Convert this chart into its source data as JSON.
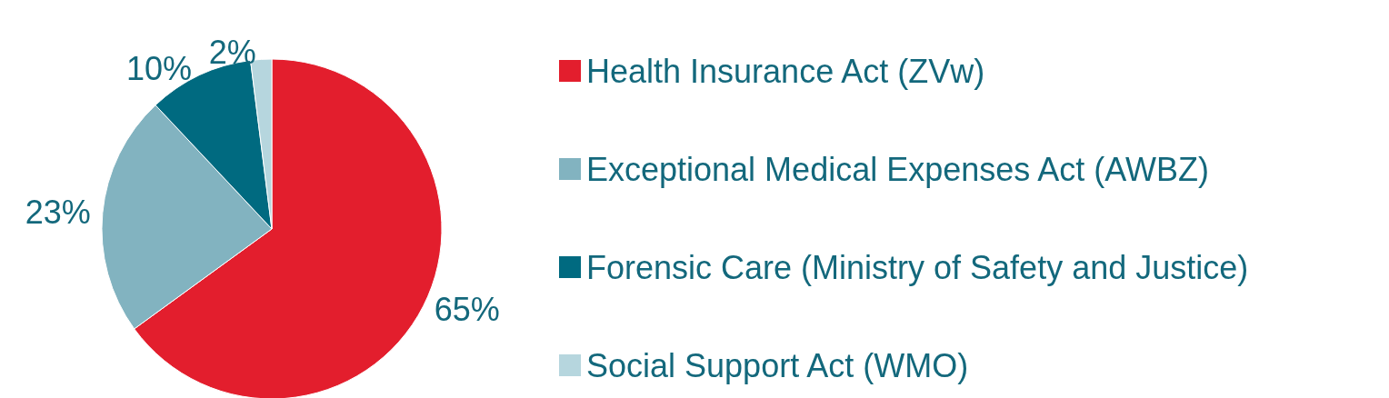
{
  "chart_data": {
    "type": "pie",
    "categories": [
      "Health Insurance Act (ZVw)",
      "Exceptional Medical Expenses Act (AWBZ)",
      "Forensic Care (Ministry of Safety and Justice)",
      "Social Support Act (WMO)"
    ],
    "values": [
      65,
      23,
      10,
      2
    ],
    "value_labels": [
      "65%",
      "23%",
      "10%",
      "2%"
    ],
    "colors": [
      "#e31e2d",
      "#82b3c0",
      "#006a80",
      "#b6d6de"
    ],
    "legend": "right"
  }
}
